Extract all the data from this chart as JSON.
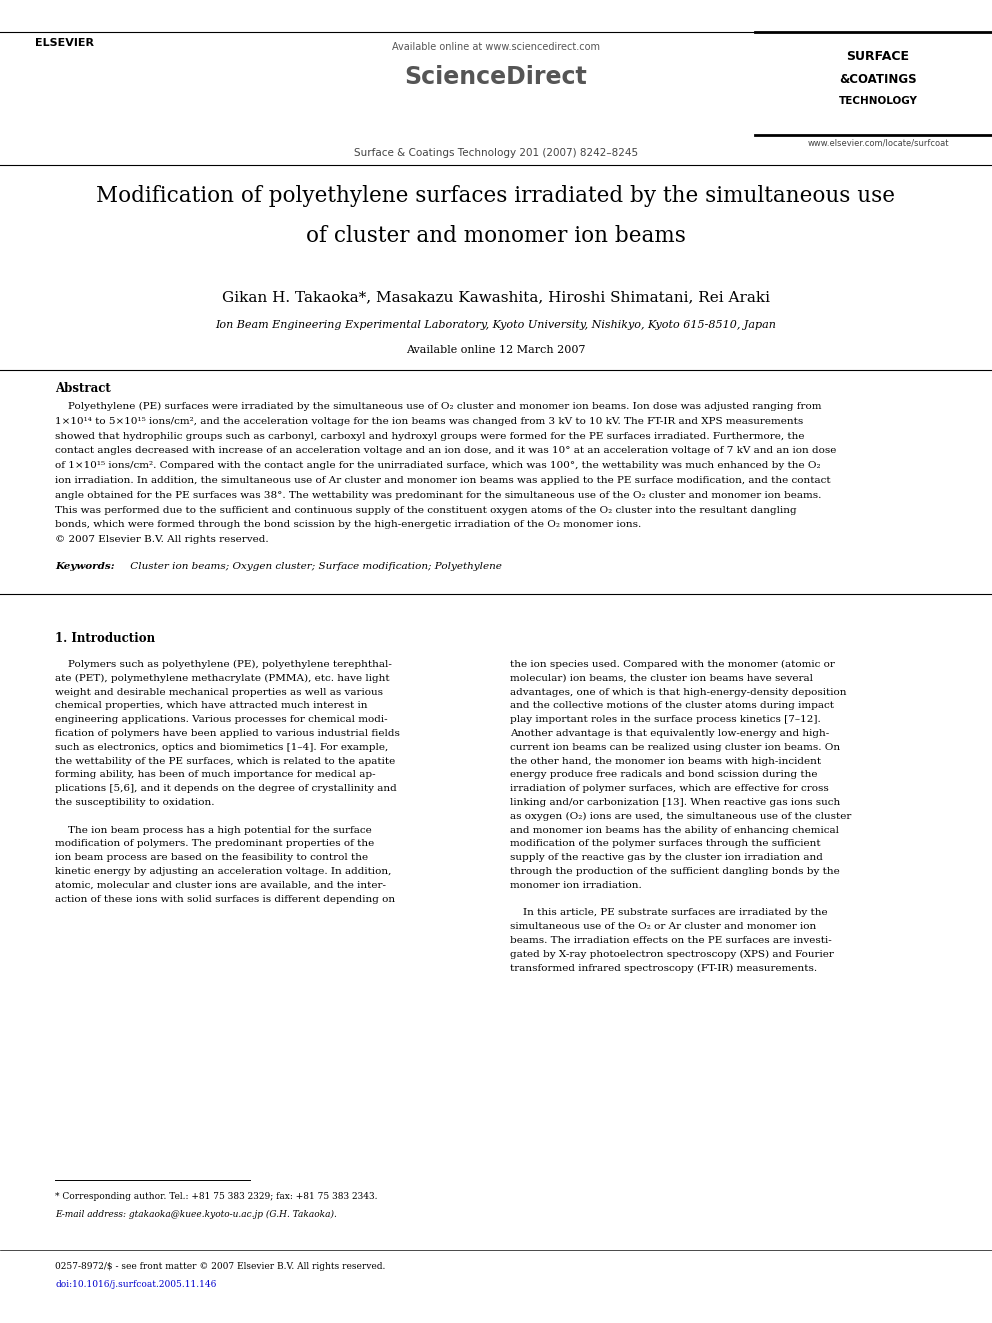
{
  "bg_color": "#ffffff",
  "title_line1": "Modification of polyethylene surfaces irradiated by the simultaneous use",
  "title_line2": "of cluster and monomer ion beams",
  "authors": "Gikan H. Takaoka*, Masakazu Kawashita, Hiroshi Shimatani, Rei Araki",
  "affiliation": "Ion Beam Engineering Experimental Laboratory, Kyoto University, Nishikyo, Kyoto 615-8510, Japan",
  "online_date": "Available online 12 March 2007",
  "header_available": "Available online at www.sciencedirect.com",
  "sciencedirect": "ScienceDirect",
  "journal_ref": "Surface & Coatings Technology 201 (2007) 8242–8245",
  "journal_url": "www.elsevier.com/locate/surfcoat",
  "elsevier": "ELSEVIER",
  "surf1": "SURFACE",
  "surf2": "&COATINGS",
  "surf3": "TECHNOLOGY",
  "abstract_title": "Abstract",
  "abs_lines": [
    "    Polyethylene (PE) surfaces were irradiated by the simultaneous use of O₂ cluster and monomer ion beams. Ion dose was adjusted ranging from",
    "1×10¹⁴ to 5×10¹⁵ ions/cm², and the acceleration voltage for the ion beams was changed from 3 kV to 10 kV. The FT-IR and XPS measurements",
    "showed that hydrophilic groups such as carbonyl, carboxyl and hydroxyl groups were formed for the PE surfaces irradiated. Furthermore, the",
    "contact angles decreased with increase of an acceleration voltage and an ion dose, and it was 10° at an acceleration voltage of 7 kV and an ion dose",
    "of 1×10¹⁵ ions/cm². Compared with the contact angle for the unirradiated surface, which was 100°, the wettability was much enhanced by the O₂",
    "ion irradiation. In addition, the simultaneous use of Ar cluster and monomer ion beams was applied to the PE surface modification, and the contact",
    "angle obtained for the PE surfaces was 38°. The wettability was predominant for the simultaneous use of the O₂ cluster and monomer ion beams.",
    "This was performed due to the sufficient and continuous supply of the constituent oxygen atoms of the O₂ cluster into the resultant dangling",
    "bonds, which were formed through the bond scission by the high-energetic irradiation of the O₂ monomer ions.",
    "© 2007 Elsevier B.V. All rights reserved."
  ],
  "kw_label": "Keywords:",
  "kw_text": " Cluster ion beams; Oxygen cluster; Surface modification; Polyethylene",
  "section1_title": "1. Introduction",
  "left_col_lines": [
    "    Polymers such as polyethylene (PE), polyethylene terephthal-",
    "ate (PET), polymethylene methacrylate (PMMA), etc. have light",
    "weight and desirable mechanical properties as well as various",
    "chemical properties, which have attracted much interest in",
    "engineering applications. Various processes for chemical modi-",
    "fication of polymers have been applied to various industrial fields",
    "such as electronics, optics and biomimetics [1–4]. For example,",
    "the wettability of the PE surfaces, which is related to the apatite",
    "forming ability, has been of much importance for medical ap-",
    "plications [5,6], and it depends on the degree of crystallinity and",
    "the susceptibility to oxidation.",
    "",
    "    The ion beam process has a high potential for the surface",
    "modification of polymers. The predominant properties of the",
    "ion beam process are based on the feasibility to control the",
    "kinetic energy by adjusting an acceleration voltage. In addition,",
    "atomic, molecular and cluster ions are available, and the inter-",
    "action of these ions with solid surfaces is different depending on"
  ],
  "right_col_lines": [
    "the ion species used. Compared with the monomer (atomic or",
    "molecular) ion beams, the cluster ion beams have several",
    "advantages, one of which is that high-energy-density deposition",
    "and the collective motions of the cluster atoms during impact",
    "play important roles in the surface process kinetics [7–12].",
    "Another advantage is that equivalently low-energy and high-",
    "current ion beams can be realized using cluster ion beams. On",
    "the other hand, the monomer ion beams with high-incident",
    "energy produce free radicals and bond scission during the",
    "irradiation of polymer surfaces, which are effective for cross",
    "linking and/or carbonization [13]. When reactive gas ions such",
    "as oxygen (O₂) ions are used, the simultaneous use of the cluster",
    "and monomer ion beams has the ability of enhancing chemical",
    "modification of the polymer surfaces through the sufficient",
    "supply of the reactive gas by the cluster ion irradiation and",
    "through the production of the sufficient dangling bonds by the",
    "monomer ion irradiation.",
    "",
    "    In this article, PE substrate surfaces are irradiated by the",
    "simultaneous use of the O₂ or Ar cluster and monomer ion",
    "beams. The irradiation effects on the PE surfaces are investi-",
    "gated by X-ray photoelectron spectroscopy (XPS) and Fourier",
    "transformed infrared spectroscopy (FT-IR) measurements."
  ],
  "footnote_star": "* Corresponding author. Tel.: +81 75 383 2329; fax: +81 75 383 2343.",
  "footnote_email": "E-mail address: gtakaoka@kuee.kyoto-u.ac.jp (G.H. Takaoka).",
  "footer_issn": "0257-8972/$ - see front matter © 2007 Elsevier B.V. All rights reserved.",
  "footer_doi": "doi:10.1016/j.surfcoat.2005.11.146"
}
